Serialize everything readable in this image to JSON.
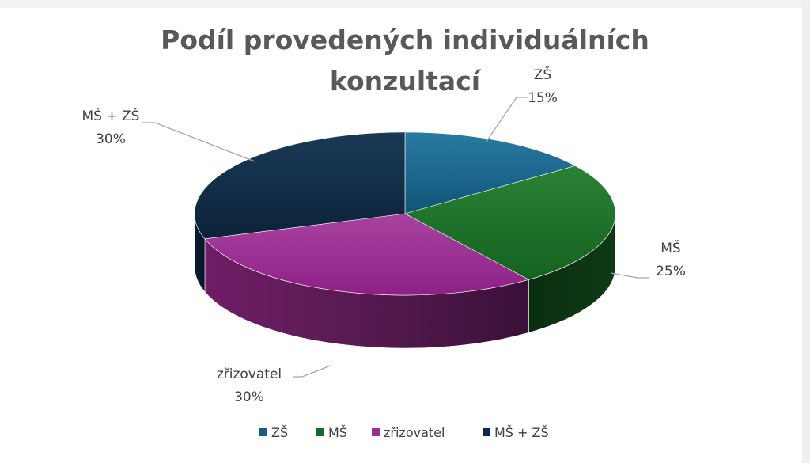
{
  "chart_data": {
    "type": "pie",
    "title_lines": [
      "Podíl provedených individuálních",
      "konzultací"
    ],
    "categories": [
      "ZŠ",
      "MŠ",
      "zřizovatel",
      "MŠ + ZŠ"
    ],
    "values": [
      15,
      25,
      30,
      30
    ],
    "value_labels": [
      "15%",
      "25%",
      "30%",
      "30%"
    ],
    "colors": [
      "#156082",
      "#196B24",
      "#A02B93",
      "#0E2841"
    ],
    "legend_position": "bottom",
    "style": "3d"
  }
}
